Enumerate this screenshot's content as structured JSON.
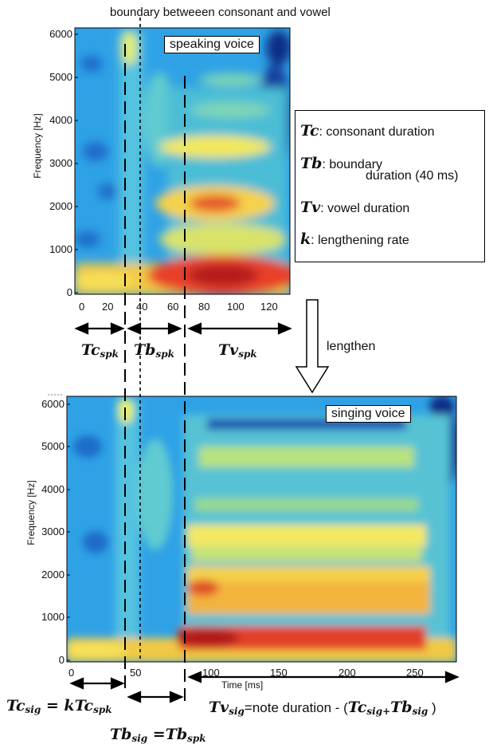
{
  "top_annotation": "boundary betweeen consonant and vowel",
  "panel_top": {
    "label": "speaking voice",
    "y_axis_label": "Frequency [Hz]",
    "y_ticks": [
      "0",
      "1000",
      "2000",
      "3000",
      "4000",
      "5000",
      "6000"
    ],
    "x_ticks": [
      "0",
      "20",
      "40",
      "60",
      "80",
      "100",
      "120"
    ]
  },
  "panel_bottom": {
    "label": "singing voice",
    "y_axis_label": "Frequency [Hz]",
    "y_ticks": [
      "0",
      "1000",
      "2000",
      "3000",
      "4000",
      "5000",
      "6000"
    ],
    "x_ticks": [
      "0",
      "50",
      "100",
      "150",
      "200",
      "250"
    ],
    "x_axis_label": "Time [ms]"
  },
  "legend": {
    "tc_sym": "Tc",
    "tc_text": ": consonant duration",
    "tb_sym": "Tb",
    "tb_text": ": boundary",
    "tb_text2": "duration (40 ms)",
    "tv_sym": "Tv",
    "tv_text": ": vowel duration",
    "k_sym": "k",
    "k_text": ": lengthening rate"
  },
  "lengthen_label": "lengthen",
  "durations_top": {
    "tc": "Tc",
    "tc_sub": "spk",
    "tb": "Tb",
    "tb_sub": "spk",
    "tv": "Tv",
    "tv_sub": "spk"
  },
  "durations_bottom": {
    "tc_sig": "Tc",
    "tc_sig_sub": "sig",
    "eq1": " = k",
    "tc_spk": "Tc",
    "tc_spk_sub": "spk",
    "tb_sig": "Tb",
    "tb_sig_sub": "sig",
    "eq2": " =",
    "tb_spk": "Tb",
    "tb_spk_sub": "spk",
    "tv_sig": "Tv",
    "tv_sig_sub": "sig",
    "note": "=note duration - (",
    "tc2": "Tc",
    "tc2_sub": "sig+",
    "tb2": "Tb",
    "tb2_sub": "sig",
    "close": " )"
  }
}
